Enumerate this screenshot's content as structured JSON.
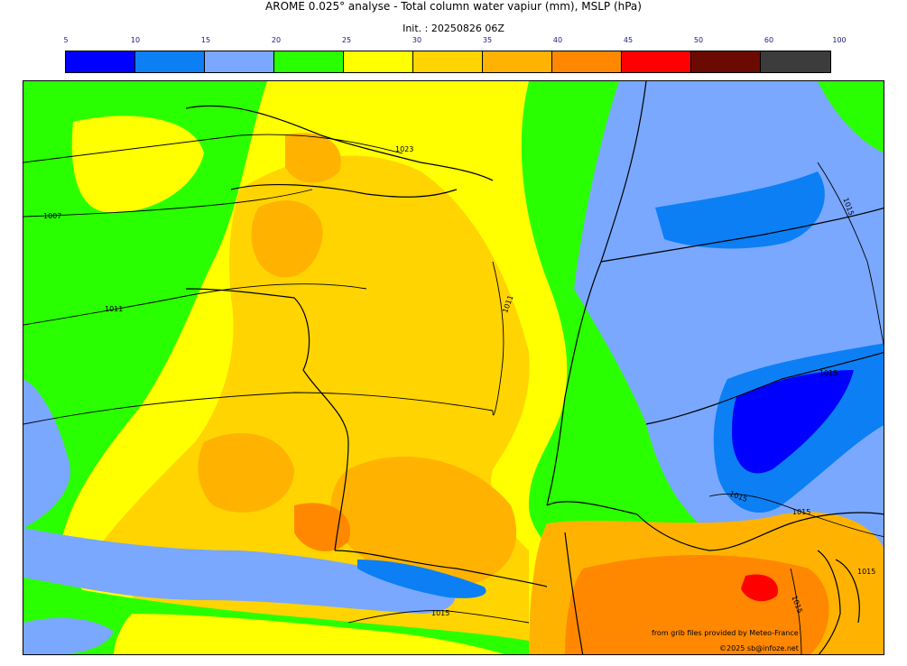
{
  "header": {
    "title": "AROME 0.025° analyse - Total column water vapiur (mm), MSLP (hPa)",
    "init": "Init. : 20250826 06Z"
  },
  "colorbar": {
    "ticks": [
      "5",
      "10",
      "15",
      "20",
      "25",
      "30",
      "35",
      "40",
      "45",
      "50",
      "60",
      "100"
    ],
    "colors": [
      "#0000ff",
      "#0c7ff5",
      "#7aa8ff",
      "#2aff00",
      "#ffff00",
      "#ffd400",
      "#ffb300",
      "#ff8800",
      "#ff0000",
      "#6b0a00",
      "#3c3c3c"
    ]
  },
  "map": {
    "isobar_labels": [
      "1023",
      "1007",
      "1011",
      "1011",
      "1015",
      "1015",
      "1015",
      "1015",
      "1015",
      "1015",
      "1015"
    ]
  },
  "credits": {
    "source": "from grib files provided by Meteo-France",
    "copyright": "©2025 sb@infoze.net"
  }
}
